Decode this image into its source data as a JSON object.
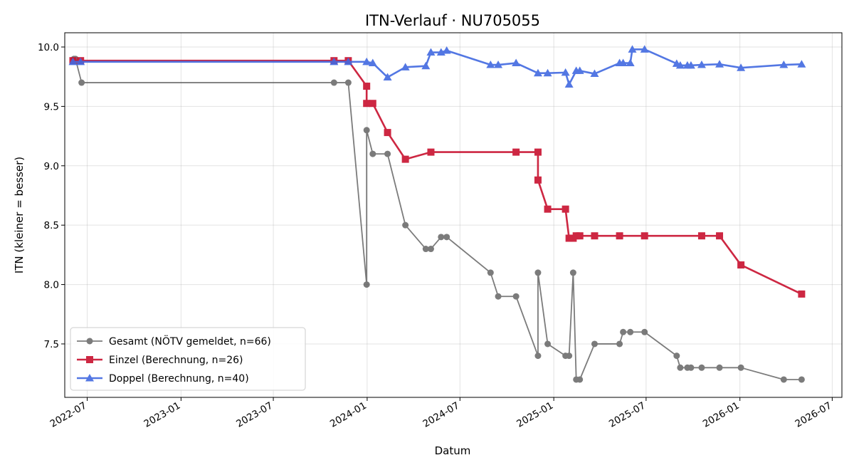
{
  "chart_data": {
    "type": "line",
    "title": "ITN-Verlauf · NU705055",
    "xlabel": "Datum",
    "ylabel": "ITN  (kleiner = besser)",
    "xlim": [
      "2022-05-18",
      "2026-07-20"
    ],
    "ylim": [
      7.05,
      10.12
    ],
    "x_ticks": [
      "2022-07",
      "2023-01",
      "2023-07",
      "2024-01",
      "2024-07",
      "2025-01",
      "2025-07",
      "2026-01",
      "2026-07"
    ],
    "y_ticks": [
      7.5,
      8.0,
      8.5,
      9.0,
      9.5,
      10.0
    ],
    "y_tick_labels": [
      "7.5",
      "8.0",
      "8.5",
      "9.0",
      "9.5",
      "10.0"
    ],
    "grid": true,
    "legend_position": "lower-left",
    "series": [
      {
        "name": "Gesamt (NÖTV gemeldet, n=66)",
        "color": "#505050",
        "marker": "circle",
        "points": [
          [
            "2022-06-05",
            9.9
          ],
          [
            "2022-06-08",
            9.9
          ],
          [
            "2022-06-20",
            9.7
          ],
          [
            "2023-10-28",
            9.7
          ],
          [
            "2023-11-25",
            9.7
          ],
          [
            "2023-12-31",
            8.0
          ],
          [
            "2023-12-31",
            9.3
          ],
          [
            "2024-01-12",
            9.1
          ],
          [
            "2024-02-10",
            9.1
          ],
          [
            "2024-03-16",
            8.5
          ],
          [
            "2024-04-25",
            8.3
          ],
          [
            "2024-05-05",
            8.3
          ],
          [
            "2024-05-25",
            8.4
          ],
          [
            "2024-06-05",
            8.4
          ],
          [
            "2024-08-30",
            8.1
          ],
          [
            "2024-09-14",
            7.9
          ],
          [
            "2024-10-19",
            7.9
          ],
          [
            "2024-12-01",
            7.4
          ],
          [
            "2024-12-01",
            8.1
          ],
          [
            "2024-12-20",
            7.5
          ],
          [
            "2025-01-24",
            7.4
          ],
          [
            "2025-01-31",
            7.4
          ],
          [
            "2025-02-08",
            8.1
          ],
          [
            "2025-02-14",
            7.2
          ],
          [
            "2025-02-21",
            7.2
          ],
          [
            "2025-03-22",
            7.5
          ],
          [
            "2025-05-10",
            7.5
          ],
          [
            "2025-05-17",
            7.6
          ],
          [
            "2025-05-31",
            7.6
          ],
          [
            "2025-06-28",
            7.6
          ],
          [
            "2025-08-30",
            7.4
          ],
          [
            "2025-09-06",
            7.3
          ],
          [
            "2025-09-20",
            7.3
          ],
          [
            "2025-09-27",
            7.3
          ],
          [
            "2025-10-18",
            7.3
          ],
          [
            "2025-11-22",
            7.3
          ],
          [
            "2026-01-03",
            7.3
          ],
          [
            "2026-03-28",
            7.2
          ],
          [
            "2026-05-02",
            7.2
          ]
        ]
      },
      {
        "name": "Einzel (Berechnung, n=26)",
        "color": "#c8102e",
        "marker": "square",
        "points": [
          [
            "2022-06-03",
            9.885
          ],
          [
            "2022-06-18",
            9.885
          ],
          [
            "2023-10-28",
            9.885
          ],
          [
            "2023-11-25",
            9.885
          ],
          [
            "2023-12-31",
            9.67
          ],
          [
            "2023-12-31",
            9.525
          ],
          [
            "2024-01-12",
            9.525
          ],
          [
            "2024-02-10",
            9.28
          ],
          [
            "2024-03-16",
            9.055
          ],
          [
            "2024-05-05",
            9.115
          ],
          [
            "2024-10-19",
            9.115
          ],
          [
            "2024-12-01",
            9.115
          ],
          [
            "2024-12-01",
            8.88
          ],
          [
            "2024-12-20",
            8.635
          ],
          [
            "2025-01-24",
            8.635
          ],
          [
            "2025-01-31",
            8.39
          ],
          [
            "2025-02-08",
            8.39
          ],
          [
            "2025-02-14",
            8.41
          ],
          [
            "2025-02-21",
            8.41
          ],
          [
            "2025-03-22",
            8.41
          ],
          [
            "2025-05-10",
            8.41
          ],
          [
            "2025-06-28",
            8.41
          ],
          [
            "2025-10-18",
            8.41
          ],
          [
            "2025-11-22",
            8.41
          ],
          [
            "2026-01-03",
            8.165
          ],
          [
            "2026-05-02",
            7.92
          ]
        ]
      },
      {
        "name": "Doppel (Berechnung, n=40)",
        "color": "#4169e1",
        "marker": "triangle",
        "points": [
          [
            "2022-06-03",
            9.875
          ],
          [
            "2022-06-18",
            9.875
          ],
          [
            "2023-10-28",
            9.875
          ],
          [
            "2023-11-25",
            9.875
          ],
          [
            "2023-12-31",
            9.875
          ],
          [
            "2024-01-12",
            9.865
          ],
          [
            "2024-02-10",
            9.745
          ],
          [
            "2024-03-16",
            9.83
          ],
          [
            "2024-04-25",
            9.84
          ],
          [
            "2024-05-05",
            9.955
          ],
          [
            "2024-05-25",
            9.955
          ],
          [
            "2024-06-05",
            9.97
          ],
          [
            "2024-08-30",
            9.85
          ],
          [
            "2024-09-14",
            9.85
          ],
          [
            "2024-10-19",
            9.865
          ],
          [
            "2024-12-01",
            9.78
          ],
          [
            "2024-12-20",
            9.78
          ],
          [
            "2025-01-24",
            9.785
          ],
          [
            "2025-01-31",
            9.685
          ],
          [
            "2025-02-14",
            9.8
          ],
          [
            "2025-02-21",
            9.8
          ],
          [
            "2025-03-22",
            9.775
          ],
          [
            "2025-05-10",
            9.865
          ],
          [
            "2025-05-17",
            9.865
          ],
          [
            "2025-05-31",
            9.865
          ],
          [
            "2025-06-04",
            9.98
          ],
          [
            "2025-06-28",
            9.98
          ],
          [
            "2025-08-30",
            9.86
          ],
          [
            "2025-09-06",
            9.845
          ],
          [
            "2025-09-20",
            9.845
          ],
          [
            "2025-09-27",
            9.845
          ],
          [
            "2025-10-18",
            9.85
          ],
          [
            "2025-11-22",
            9.855
          ],
          [
            "2026-01-03",
            9.825
          ],
          [
            "2026-03-28",
            9.85
          ],
          [
            "2026-05-02",
            9.855
          ]
        ]
      }
    ]
  }
}
